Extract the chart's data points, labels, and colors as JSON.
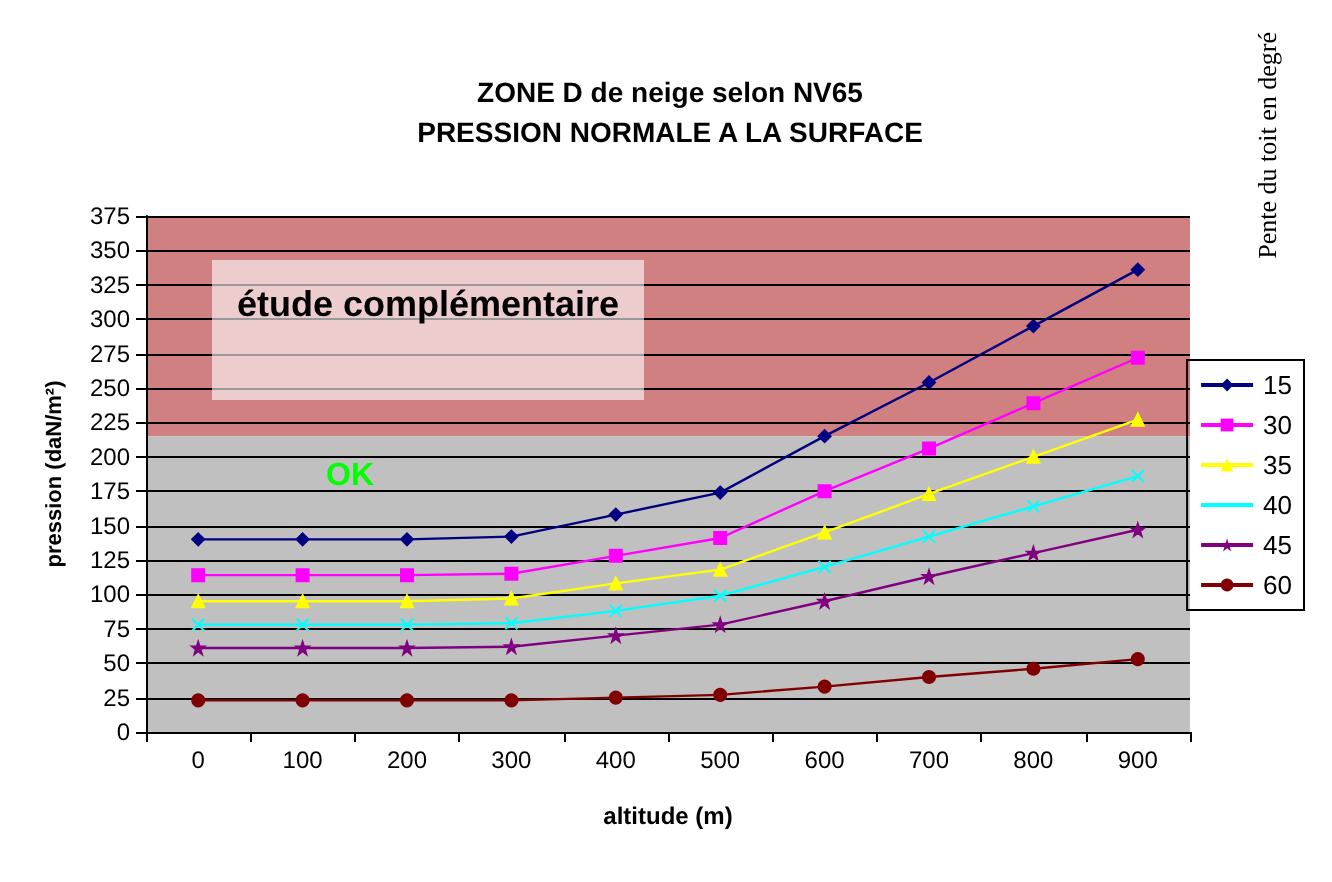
{
  "chart_data": {
    "type": "line",
    "title": "ZONE D de neige selon NV65",
    "subtitle": "PRESSION NORMALE A LA SURFACE",
    "xlabel": "altitude (m)",
    "ylabel": "pression (daN/m²)",
    "legend_title": "Pente du toit en degré",
    "categories": [
      "0",
      "100",
      "200",
      "300",
      "400",
      "500",
      "600",
      "700",
      "800",
      "900"
    ],
    "series": [
      {
        "name": "15",
        "color": "#000080",
        "marker": "diamond",
        "values": [
          140,
          140,
          140,
          142,
          158,
          174,
          215,
          254,
          295,
          336
        ]
      },
      {
        "name": "30",
        "color": "#ff00ff",
        "marker": "square",
        "values": [
          114,
          114,
          114,
          115,
          128,
          141,
          175,
          206,
          239,
          272
        ]
      },
      {
        "name": "35",
        "color": "#ffff00",
        "marker": "triangle",
        "values": [
          95,
          95,
          95,
          97,
          108,
          118,
          145,
          173,
          200,
          227
        ]
      },
      {
        "name": "40",
        "color": "#00ffff",
        "marker": "cross",
        "values": [
          78,
          78,
          78,
          79,
          88,
          99,
          120,
          142,
          164,
          186
        ]
      },
      {
        "name": "45",
        "color": "#800080",
        "marker": "star",
        "values": [
          61,
          61,
          61,
          62,
          70,
          78,
          95,
          113,
          130,
          147
        ]
      },
      {
        "name": "60",
        "color": "#800000",
        "marker": "circle",
        "values": [
          23,
          23,
          23,
          23,
          25,
          27,
          33,
          40,
          46,
          53
        ]
      }
    ],
    "ylim": [
      0,
      375
    ],
    "yticks": [
      0,
      25,
      50,
      75,
      100,
      125,
      150,
      175,
      200,
      225,
      250,
      275,
      300,
      325,
      350,
      375
    ],
    "bands": [
      {
        "axis": "y",
        "from": 215,
        "to": 375,
        "label": "étude complémentaire",
        "color": "#d08080"
      },
      {
        "axis": "y",
        "from": 0,
        "to": 215,
        "label": "OK",
        "color": "#c0c0c0"
      }
    ],
    "grid": "y",
    "legend": "right",
    "line_style": "solid"
  }
}
